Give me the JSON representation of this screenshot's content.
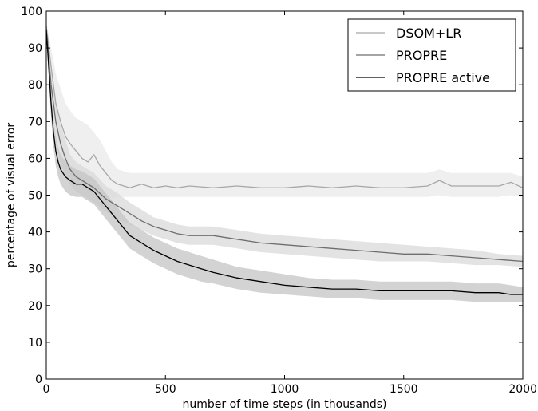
{
  "chart_data": {
    "type": "line",
    "title": "",
    "xlabel": "number of time steps (in thousands)",
    "ylabel": "percentage of visual error",
    "xlim": [
      0,
      2000
    ],
    "ylim": [
      0,
      100
    ],
    "xticks": [
      0,
      500,
      1000,
      1500,
      2000
    ],
    "yticks": [
      0,
      10,
      20,
      30,
      40,
      50,
      60,
      70,
      80,
      90,
      100
    ],
    "grid": false,
    "legend_position": "top-right",
    "series": [
      {
        "name": "DSOM+LR",
        "color": "#a8a8a8",
        "band_color": "#e9e9e9",
        "x": [
          0,
          20,
          40,
          60,
          80,
          100,
          125,
          150,
          175,
          200,
          225,
          250,
          275,
          300,
          350,
          400,
          450,
          500,
          550,
          600,
          700,
          800,
          900,
          1000,
          1100,
          1200,
          1300,
          1400,
          1500,
          1600,
          1650,
          1700,
          1800,
          1900,
          1950,
          2000
        ],
        "y": [
          96,
          85,
          75,
          70,
          66,
          64,
          62,
          60,
          59,
          61,
          58,
          56,
          54,
          53,
          52,
          53,
          52,
          52.5,
          52,
          52.5,
          52,
          52.5,
          52,
          52,
          52.5,
          52,
          52.5,
          52,
          52,
          52.5,
          54,
          52.5,
          52.5,
          52.5,
          53.5,
          52
        ],
        "lower": [
          95,
          80,
          68,
          62,
          58,
          55,
          53,
          52,
          51,
          51,
          50,
          50,
          49,
          49.5,
          49.5,
          49.5,
          49.5,
          49.5,
          49.5,
          49.5,
          49.5,
          49.5,
          49.5,
          49.5,
          49.5,
          49.5,
          49.5,
          49.5,
          49.5,
          49.5,
          50,
          49.5,
          49.5,
          49.5,
          50,
          49.5
        ],
        "upper": [
          97,
          90,
          83,
          79,
          75,
          73,
          71,
          70,
          69,
          67,
          65,
          62,
          59,
          57,
          56,
          56,
          56,
          56,
          56,
          56,
          56,
          56,
          56,
          56,
          56,
          56,
          56,
          56,
          56,
          56,
          57,
          56,
          56,
          56,
          56,
          55
        ]
      },
      {
        "name": "PROPRE",
        "color": "#6e6e6e",
        "band_color": "#d9d9d9",
        "x": [
          0,
          20,
          40,
          60,
          80,
          100,
          125,
          150,
          175,
          200,
          250,
          300,
          350,
          400,
          450,
          500,
          550,
          600,
          700,
          800,
          900,
          1000,
          1100,
          1200,
          1300,
          1400,
          1500,
          1600,
          1700,
          1800,
          1900,
          2000
        ],
        "y": [
          95,
          80,
          70,
          64,
          60,
          57,
          55,
          54,
          53,
          52,
          49,
          47,
          45,
          43,
          41.5,
          40.5,
          39.5,
          39,
          39,
          38,
          37,
          36.5,
          36,
          35.5,
          35,
          34.5,
          34,
          34,
          33.5,
          33,
          32.5,
          32
        ],
        "lower": [
          94,
          76,
          65,
          59,
          55,
          53,
          51,
          50,
          49,
          48,
          45.5,
          43.5,
          42,
          40.5,
          39,
          38,
          37,
          36.5,
          36.5,
          35.5,
          34.5,
          34,
          33.5,
          33,
          32.5,
          32,
          32,
          32,
          31.5,
          31,
          31,
          30.5
        ],
        "upper": [
          96,
          84,
          75,
          69,
          65,
          61,
          59,
          58,
          57,
          56,
          52.5,
          50.5,
          48,
          46,
          44,
          43,
          42,
          41.5,
          41.5,
          40.5,
          39.5,
          39,
          38.5,
          38,
          37.5,
          37,
          36.5,
          36,
          35.5,
          35,
          34,
          33.5
        ]
      },
      {
        "name": "PROPRE active",
        "color": "#000000",
        "band_color": "#c4c4c4",
        "x": [
          0,
          10,
          20,
          30,
          40,
          50,
          60,
          80,
          100,
          125,
          150,
          175,
          200,
          250,
          300,
          350,
          400,
          450,
          500,
          550,
          600,
          650,
          700,
          800,
          900,
          1000,
          1100,
          1200,
          1300,
          1400,
          1500,
          1600,
          1700,
          1800,
          1900,
          1950,
          2000
        ],
        "y": [
          95,
          85,
          75,
          67,
          62,
          59,
          57,
          55,
          54,
          53,
          53,
          52,
          51,
          47,
          43,
          39,
          37,
          35,
          33.5,
          32,
          31,
          30,
          29,
          27.5,
          26.5,
          25.5,
          25,
          24.5,
          24.5,
          24,
          24,
          24,
          24,
          23.5,
          23.5,
          23,
          23
        ],
        "lower": [
          94,
          82,
          71,
          63,
          58,
          55,
          53,
          51,
          50,
          49.5,
          49.5,
          48.5,
          47.5,
          43.5,
          39.5,
          35.5,
          33.5,
          31.5,
          30,
          28.5,
          27.5,
          26.5,
          26,
          24.5,
          23.5,
          23,
          22.5,
          22,
          22,
          21.5,
          21.5,
          21.5,
          21.5,
          21,
          21,
          21,
          21
        ],
        "upper": [
          96,
          88,
          79,
          71,
          66,
          63,
          61,
          59,
          58,
          57,
          56.5,
          55.5,
          54.5,
          50.5,
          46.5,
          42.5,
          40.5,
          38.5,
          37,
          35.5,
          34.5,
          33.5,
          32.5,
          30.5,
          29.5,
          28.5,
          27.5,
          27,
          27,
          26.5,
          26.5,
          26.5,
          26.5,
          26,
          26,
          25.5,
          25
        ]
      }
    ]
  }
}
